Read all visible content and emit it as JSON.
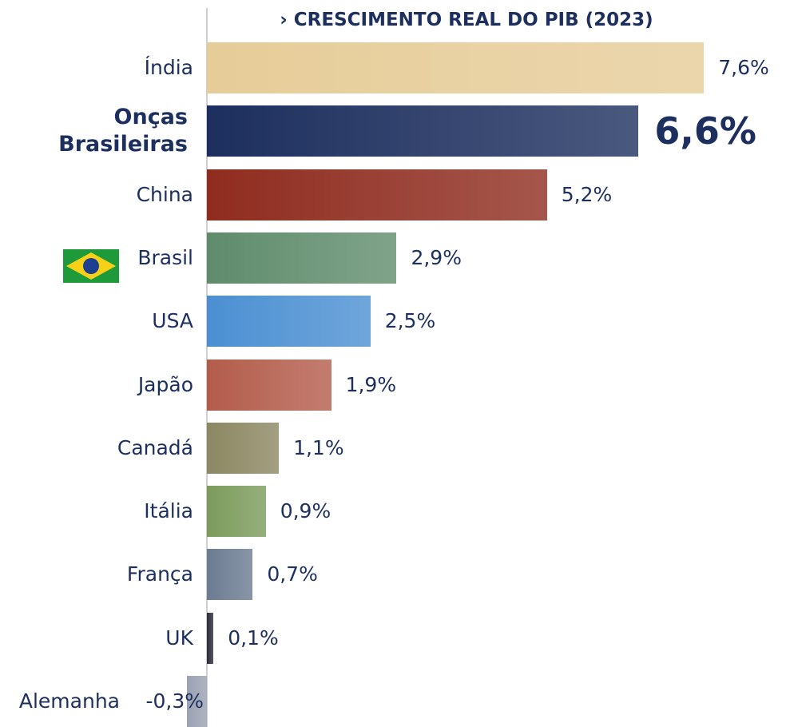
{
  "chart_data": {
    "type": "bar",
    "orientation": "horizontal",
    "title": "› CRESCIMENTO REAL DO PIB (2023)",
    "categories": [
      "Índia",
      "Onças Brasileiras",
      "China",
      "Brasil",
      "USA",
      "Japão",
      "Canadá",
      "Itália",
      "França",
      "UK",
      "Alemanha"
    ],
    "values": [
      7.6,
      6.6,
      5.2,
      2.9,
      2.5,
      1.9,
      1.1,
      0.9,
      0.7,
      0.1,
      -0.3
    ],
    "value_labels": [
      "7,6%",
      "6,6%",
      "5,2%",
      "2,9%",
      "2,5%",
      "1,9%",
      "1,1%",
      "0,9%",
      "0,7%",
      "0,1%",
      "-0,3%"
    ],
    "colors": [
      "#e6cc98",
      "#1d2f5e",
      "#8f2c1f",
      "#5f8c6c",
      "#4b8fd2",
      "#b35c4b",
      "#8b8762",
      "#7b9b5b",
      "#6b7b91",
      "#2b2b3b",
      "#9aa1b1"
    ],
    "highlight_index": 1,
    "xlim": [
      0,
      8
    ]
  }
}
